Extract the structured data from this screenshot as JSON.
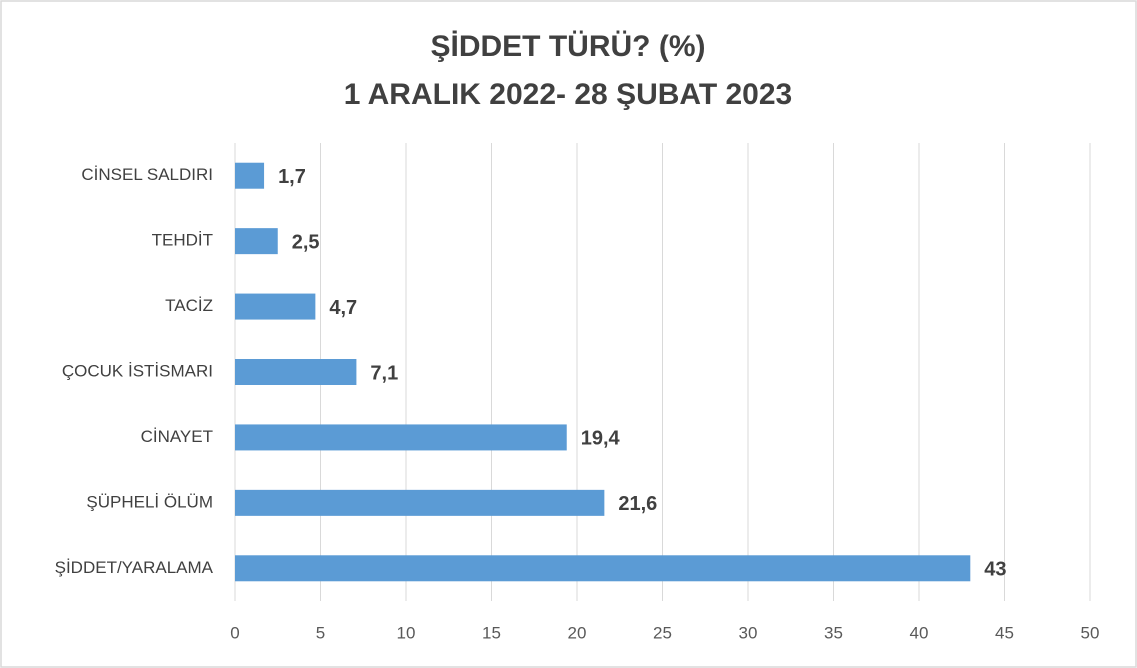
{
  "chart_data": {
    "type": "barh",
    "title": "ŞİDDET TÜRÜ? (%)",
    "subtitle": "1 ARALIK 2022- 28 ŞUBAT 2023",
    "categories": [
      "CİNSEL SALDIRI",
      "TEHDİT",
      "TACİZ",
      "ÇOCUK İSTİSMARI",
      "CİNAYET",
      "ŞÜPHELİ ÖLÜM",
      "ŞİDDET/YARALAMA"
    ],
    "values": [
      1.7,
      2.5,
      4.7,
      7.1,
      19.4,
      21.6,
      43
    ],
    "value_labels": [
      "1,7",
      "2,5",
      "4,7",
      "7,1",
      "19,4",
      "21,6",
      "43"
    ],
    "color": "#5b9bd5",
    "xlim": [
      0,
      50
    ],
    "xticks": [
      0,
      5,
      10,
      15,
      20,
      25,
      30,
      35,
      40,
      45,
      50
    ],
    "grid": true
  }
}
